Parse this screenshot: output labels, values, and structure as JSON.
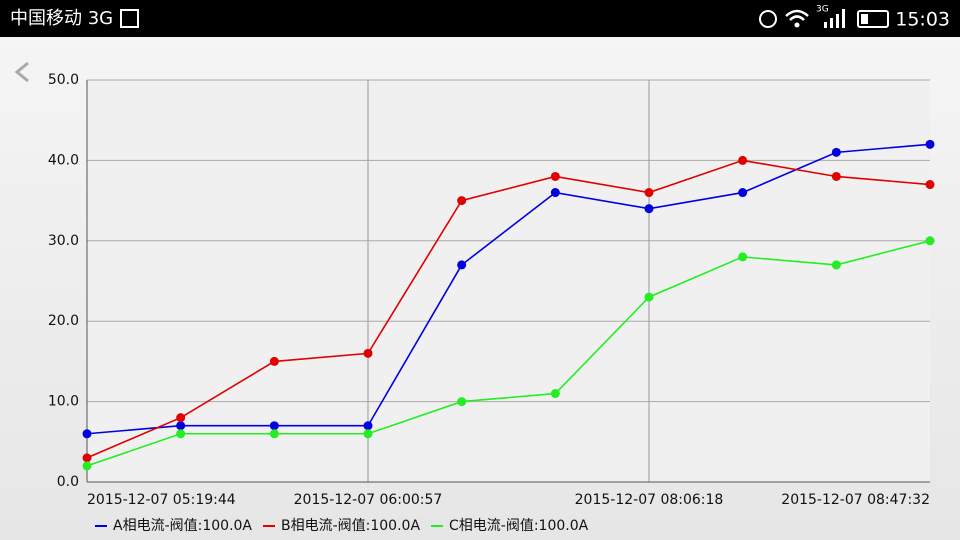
{
  "status_bar": {
    "carrier": "中国移动 3G",
    "network": "3G",
    "time": "15:03"
  },
  "chart_data": {
    "type": "line",
    "categories": [
      "2015-12-07  05:19:44",
      null,
      null,
      "2015-12-07  06:00:57",
      null,
      null,
      "2015-12-07  08:06:18",
      null,
      null,
      "2015-12-07  08:47:32"
    ],
    "series": [
      {
        "name": "A相电流-阀值:100.0A",
        "color": "#0000e0",
        "values": [
          6,
          7,
          7,
          7,
          27,
          36,
          34,
          36,
          41,
          42
        ]
      },
      {
        "name": "B相电流-阀值:100.0A",
        "color": "#e00000",
        "values": [
          3,
          8,
          15,
          16,
          35,
          38,
          36,
          40,
          38,
          37
        ]
      },
      {
        "name": "C相电流-阀值:100.0A",
        "color": "#22ee22",
        "values": [
          2,
          6,
          6,
          6,
          10,
          11,
          23,
          28,
          27,
          30
        ]
      }
    ],
    "ylim": [
      0,
      50
    ],
    "yticks": [
      {
        "value": 0,
        "label": "0.0"
      },
      {
        "value": 10,
        "label": "10.0"
      },
      {
        "value": 20,
        "label": "20.0"
      },
      {
        "value": 30,
        "label": "30.0"
      },
      {
        "value": 40,
        "label": "40.0"
      },
      {
        "value": 50,
        "label": "50.0"
      }
    ],
    "grid": true,
    "legend": "bottom-left"
  }
}
